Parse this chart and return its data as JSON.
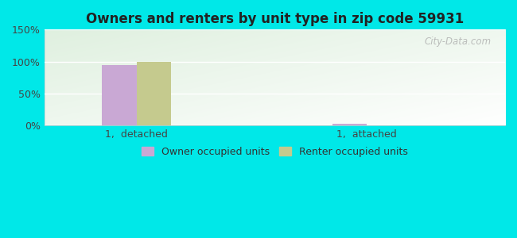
{
  "title": "Owners and renters by unit type in zip code 59931",
  "categories": [
    "1,  detached",
    "1,  attached"
  ],
  "owner_values": [
    95,
    3
  ],
  "renter_values": [
    100,
    0
  ],
  "owner_color": "#c9a8d4",
  "renter_color": "#c5ca8e",
  "ylim": [
    0,
    150
  ],
  "yticks": [
    0,
    50,
    100,
    150
  ],
  "ytick_labels": [
    "0%",
    "50%",
    "100%",
    "150%"
  ],
  "background_outer": "#00e8e8",
  "bar_width": 0.3,
  "legend_labels": [
    "Owner occupied units",
    "Renter occupied units"
  ],
  "watermark": "City-Data.com",
  "x_positions": [
    1.0,
    3.0
  ],
  "xlim": [
    0.2,
    4.2
  ]
}
